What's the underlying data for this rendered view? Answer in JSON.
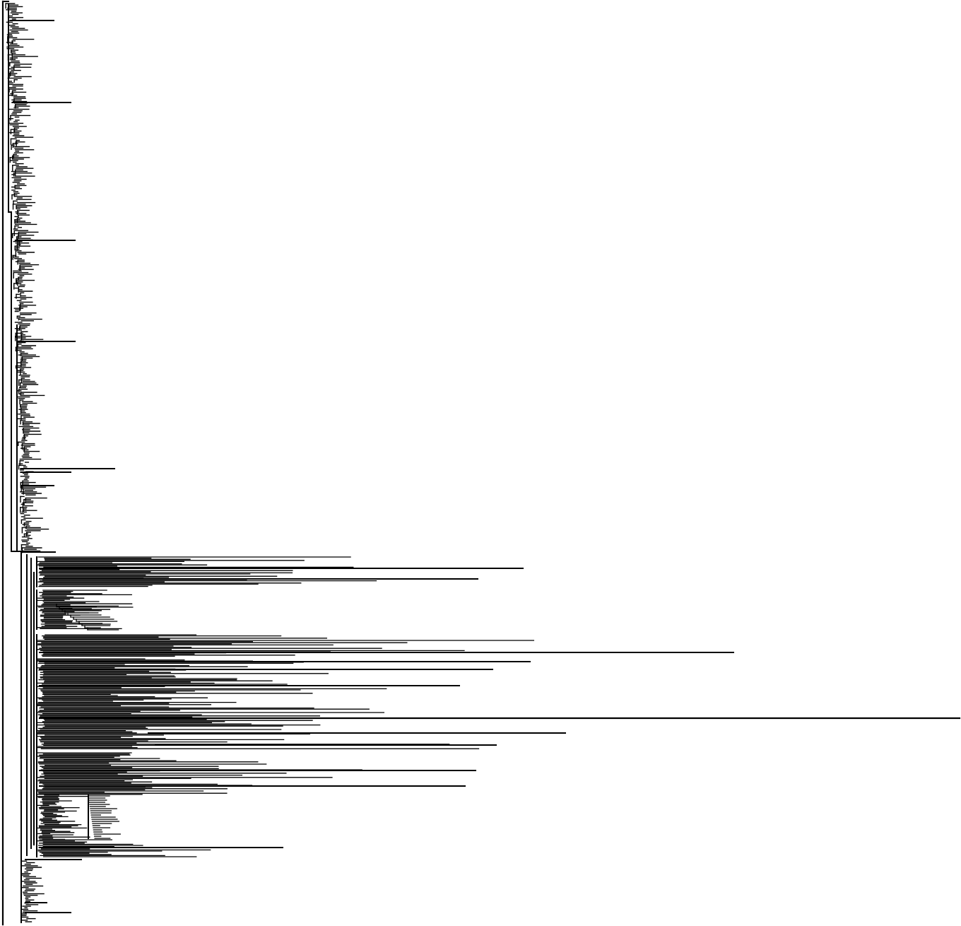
{
  "figure": {
    "type": "phylogenetic-tree",
    "style": "rectangular-cladogram",
    "orientation": "root-left",
    "branch_color": "#000000",
    "background": "#ffffff",
    "labels_shown": false,
    "scale_bar_shown": false,
    "notable_long_branches": 7
  }
}
